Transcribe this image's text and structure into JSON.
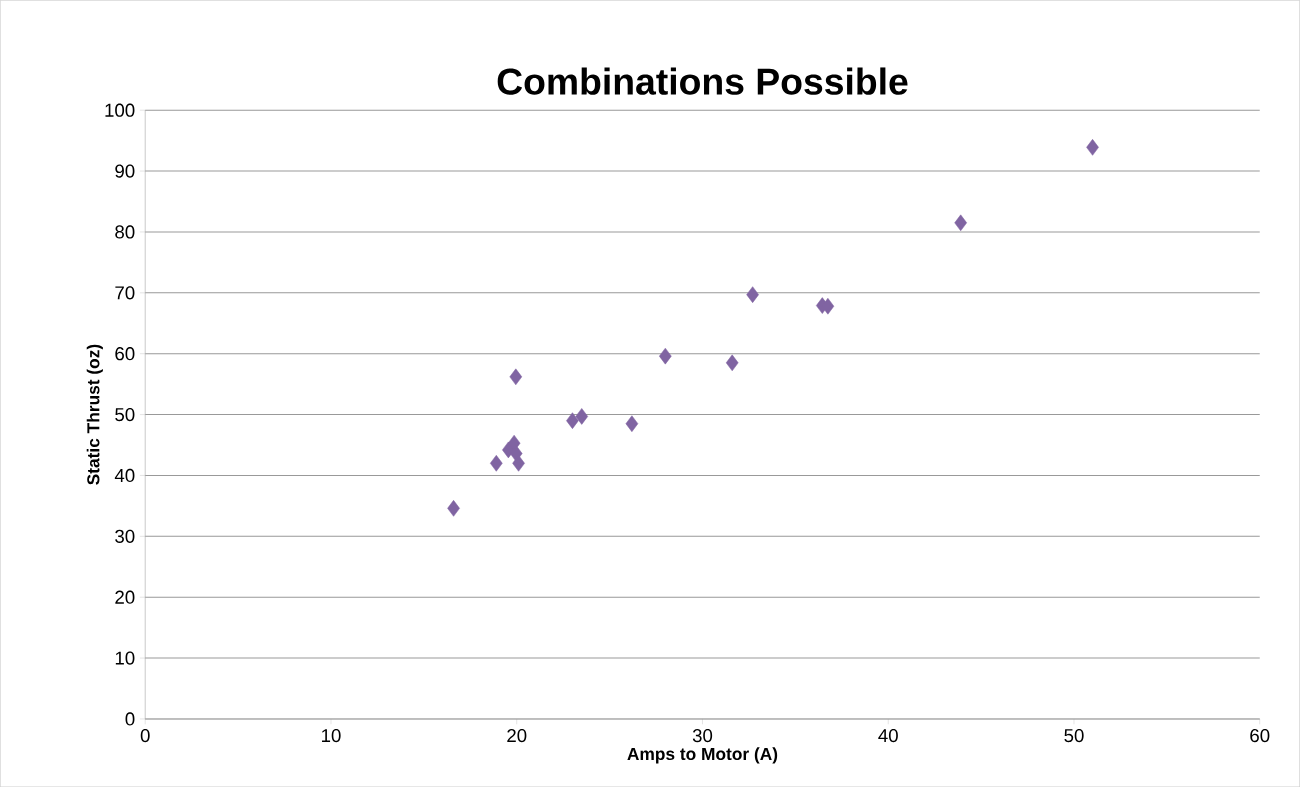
{
  "chart_data": {
    "type": "scatter",
    "title": "Combinations Possible",
    "xlabel": "Amps to Motor (A)",
    "ylabel": "Static Thrust (oz)",
    "x": [
      16.6,
      18.9,
      19.55,
      19.86,
      19.97,
      20.1,
      19.95,
      23.0,
      23.5,
      26.2,
      28.0,
      31.6,
      32.7,
      36.45,
      36.75,
      43.9,
      51.0
    ],
    "series": [
      {
        "color": "#8064a2",
        "values": [
          34.6,
          42.0,
          44.2,
          45.3,
          43.6,
          42.0,
          56.2,
          49.0,
          49.7,
          48.5,
          59.6,
          58.5,
          69.7,
          67.9,
          67.8,
          81.5,
          93.9
        ]
      }
    ],
    "xlim": [
      0,
      60
    ],
    "ylim": [
      0,
      100
    ],
    "xticks": [
      0,
      10,
      20,
      30,
      40,
      50,
      60
    ],
    "yticks": [
      0,
      10,
      20,
      30,
      40,
      50,
      60,
      70,
      80,
      90,
      100
    ],
    "grid": "y",
    "marker": "diamond"
  }
}
